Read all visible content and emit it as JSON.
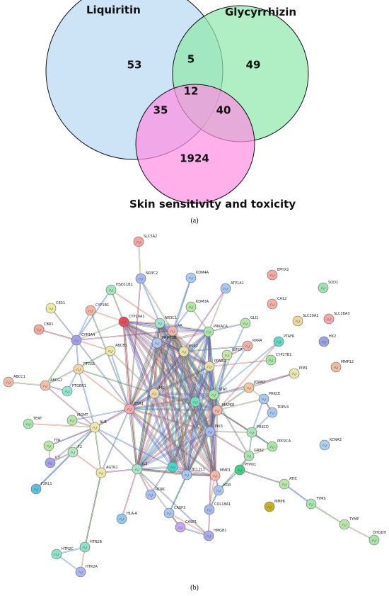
{
  "venn": {
    "sets": {
      "a": {
        "label": "Liquiritin",
        "color": "#b8d9f2"
      },
      "b": {
        "label": "Glycyrrhizin",
        "color": "#8ee8aa"
      },
      "c": {
        "label": "Skin sensitivity and toxicity",
        "color": "#ff8ee2"
      }
    },
    "counts": {
      "only_a": "53",
      "a_and_b": "5",
      "only_b": "49",
      "all": "12",
      "a_and_c": "35",
      "b_and_c": "40",
      "only_c": "1924"
    },
    "caption": "(a)"
  },
  "network": {
    "caption": "(b)",
    "nodes": [
      {
        "id": "SLC5A2",
        "label": "SLC5A2",
        "color": "#f4a3a3"
      },
      {
        "id": "NR3C2",
        "label": "NR3C2",
        "color": "#a6b8f0"
      },
      {
        "id": "KDM4A",
        "label": "KDM4A",
        "color": "#a9cdf2"
      },
      {
        "id": "EPHX2",
        "label": "EPHX2",
        "color": "#f5a8a0"
      },
      {
        "id": "SOD1",
        "label": "SOD1",
        "color": "#9fe3b4"
      },
      {
        "id": "HSD11B1",
        "label": "HSD11B1",
        "color": "#a5e6b8"
      },
      {
        "id": "ATP1A1",
        "label": "ATP1A1",
        "color": "#a7c6f2"
      },
      {
        "id": "CA12",
        "label": "CA12",
        "color": "#f4b0a8"
      },
      {
        "id": "CES1",
        "label": "CES1",
        "color": "#eceb9e"
      },
      {
        "id": "CYP1B1",
        "label": "CYP1B1",
        "color": "#f2b59c"
      },
      {
        "id": "KDM3A",
        "label": "KDM3A",
        "color": "#b5e6a0"
      },
      {
        "id": "SLC29A1",
        "label": "SLC29A1",
        "color": "#eed79a"
      },
      {
        "id": "SLC28A3",
        "label": "SLC28A3",
        "color": "#f4a8a8"
      },
      {
        "id": "CBR1",
        "label": "CBR1",
        "color": "#f2a89c"
      },
      {
        "id": "CYP19A1",
        "label": "CYP19A1",
        "color": "#e84a5a"
      },
      {
        "id": "NR3C1",
        "label": "NR3C1",
        "color": "#a5e3d0"
      },
      {
        "id": "GLI1",
        "label": "GLI1",
        "color": "#b6e6a8"
      },
      {
        "id": "HK2",
        "label": "HK2",
        "color": "#9aa0e6"
      },
      {
        "id": "CYP3A4",
        "label": "CYP3A4",
        "color": "#a4a0ec"
      },
      {
        "id": "AR",
        "label": "AR",
        "color": "#eeb5a8"
      },
      {
        "id": "PRKACA",
        "label": "PRKACA",
        "color": "#a8e6b0"
      },
      {
        "id": "PTAFR",
        "label": "PTAFR",
        "color": "#60d8c8"
      },
      {
        "id": "ABCB1",
        "label": "ABCB1",
        "color": "#ece6a8"
      },
      {
        "id": "PRMT3B",
        "label": "PRMT3B",
        "color": "#b0c8f0"
      },
      {
        "id": "RXRA",
        "label": "RXRA",
        "color": "#f2b0a8"
      },
      {
        "id": "CYP27B1",
        "label": "CYP27B1",
        "color": "#a8e6a8"
      },
      {
        "id": "MMP12",
        "label": "MMP12",
        "color": "#f4b8a0"
      },
      {
        "id": "ESR2",
        "label": "ESR2",
        "color": "#e6e2a8"
      },
      {
        "id": "IGF1R",
        "label": "IGF1R",
        "color": "#c8e6a8"
      },
      {
        "id": "PIM1",
        "label": "PIM1",
        "color": "#e6e6a8"
      },
      {
        "id": "PTGS1",
        "label": "PTGS1",
        "color": "#f0d8a0"
      },
      {
        "id": "ABCC1",
        "label": "ABCC1",
        "color": "#f2b8a8"
      },
      {
        "id": "ABCG2",
        "label": "ABCG2",
        "color": "#f0c0a8"
      },
      {
        "id": "PPARG",
        "label": "PPARG",
        "color": "#e6e0a8"
      },
      {
        "id": "PTPN2",
        "label": "PTPN2",
        "color": "#f2c8a0"
      },
      {
        "id": "PTGER1",
        "label": "PTGER1",
        "color": "#90e6d0"
      },
      {
        "id": "MC",
        "label": "MC",
        "color": "#eed8a8"
      },
      {
        "id": "STAT",
        "label": "STAT",
        "color": "#a8e6a8"
      },
      {
        "id": "PRKCE",
        "label": "PRKCE",
        "color": "#a8c8f0"
      },
      {
        "id": "ESR1",
        "label": "ESR1",
        "color": "#f4a8b0"
      },
      {
        "id": "MAPK8",
        "label": "MAPK8",
        "color": "#f2b8a8"
      },
      {
        "id": "TRPV4",
        "label": "TRPV4",
        "color": "#a8c8f0"
      },
      {
        "id": "TERT",
        "label": "TERT",
        "color": "#a8e6b0"
      },
      {
        "id": "MGMT",
        "label": "MGMT",
        "color": "#b8e6a8"
      },
      {
        "id": "ALB",
        "label": "ALB",
        "color": "#eee8a8"
      },
      {
        "id": "HUB1",
        "label": "",
        "color": "#70e0c0"
      },
      {
        "id": "PRKCD",
        "label": "PRKCD",
        "color": "#a8e6b8"
      },
      {
        "id": "PPP2CA",
        "label": "PPP2CA",
        "color": "#a8e6a8"
      },
      {
        "id": "TTR",
        "label": "TTR",
        "color": "#b8e6a8"
      },
      {
        "id": "KCNA3",
        "label": "KCNA3",
        "color": "#a8d0f0"
      },
      {
        "id": "PIK3",
        "label": "PIK3",
        "color": "#a8b8f0"
      },
      {
        "id": "C3",
        "label": "C3",
        "color": "#a8a0ec"
      },
      {
        "id": "F2",
        "label": "F2",
        "color": "#b8e6c0"
      },
      {
        "id": "F2RL1",
        "label": "F2RL1",
        "color": "#60c0e0"
      },
      {
        "id": "GRB2",
        "label": "GRB2",
        "color": "#a8e6b0"
      },
      {
        "id": "PTPN1",
        "label": "PTPN1",
        "color": "#40d080"
      },
      {
        "id": "AGTR1",
        "label": "AGTR1",
        "color": "#eee8a8"
      },
      {
        "id": "IL3",
        "label": "IL3",
        "color": "#a8e6c8"
      },
      {
        "id": "HUB2",
        "label": "",
        "color": "#40d8c8"
      },
      {
        "id": "BCL2L1",
        "label": "BCL2L1",
        "color": "#a8c8f0"
      },
      {
        "id": "MMP1",
        "label": "MMP1",
        "color": "#f4b8a8"
      },
      {
        "id": "KDR",
        "label": "KDR",
        "color": "#a8c8f0"
      },
      {
        "id": "ATIC",
        "label": "ATIC",
        "color": "#b8e6a8"
      },
      {
        "id": "RORC",
        "label": "RORC",
        "color": "#a8c0f0"
      },
      {
        "id": "COL18A1",
        "label": "COL18A1",
        "color": "#a8b8f0"
      },
      {
        "id": "MMP8",
        "label": "MMP8",
        "color": "#c8b020"
      },
      {
        "id": "TYMS",
        "label": "TYMS",
        "color": "#a8e6b0"
      },
      {
        "id": "HLA-A",
        "label": "HLA-A",
        "color": "#90c8f0"
      },
      {
        "id": "CASP3",
        "label": "CASP3",
        "color": "#a8c8f0"
      },
      {
        "id": "CASP1",
        "label": "CASP1",
        "color": "#c8a8f0"
      },
      {
        "id": "HMGB1",
        "label": "HMGB1",
        "color": "#a8a8f0"
      },
      {
        "id": "TYMP",
        "label": "TYMP",
        "color": "#b8e6a8"
      },
      {
        "id": "DHODH",
        "label": "DHODH",
        "color": "#a8e6a8"
      },
      {
        "id": "HTR2B",
        "label": "HTR2B",
        "color": "#90e0c8"
      },
      {
        "id": "HTR2C",
        "label": "HTR2C",
        "color": "#90e0c8"
      },
      {
        "id": "HTR2A",
        "label": "HTR2A",
        "color": "#a8b8f0"
      }
    ]
  }
}
